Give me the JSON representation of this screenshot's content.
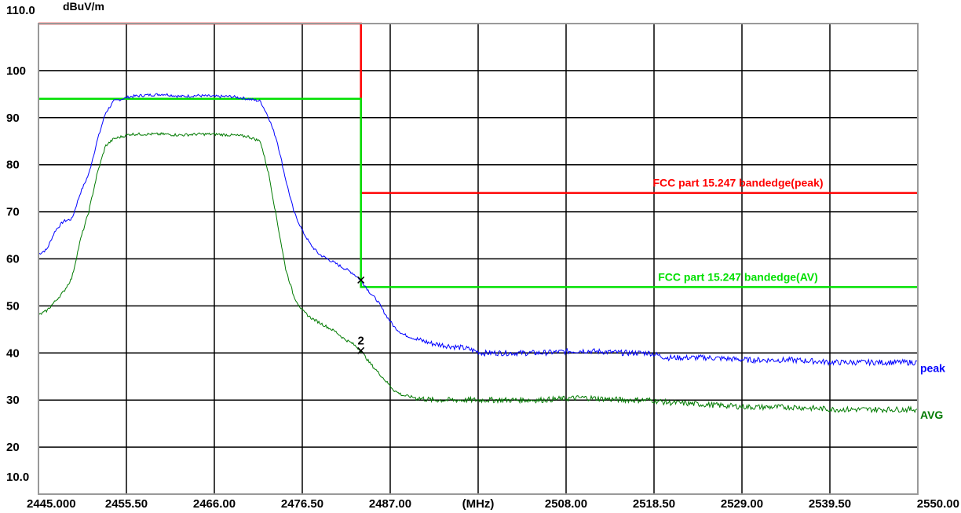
{
  "chart_data": {
    "type": "line",
    "title": "",
    "ylabel": "dBuV/m",
    "xlabel": "(MHz)",
    "xlim": [
      2445.0,
      2550.0
    ],
    "ylim": [
      10.0,
      110.0
    ],
    "grid": true,
    "y_ticks": [
      "110.0",
      "100",
      "90",
      "80",
      "70",
      "60",
      "50",
      "40",
      "30",
      "20",
      "10.0"
    ],
    "y_tick_values": [
      110,
      100,
      90,
      80,
      70,
      60,
      50,
      40,
      30,
      20,
      10
    ],
    "x_ticks": [
      "2445.000",
      "2455.50",
      "2466.00",
      "2476.50",
      "2487.00",
      "(MHz)",
      "2508.00",
      "2518.50",
      "2529.00",
      "2539.50",
      "2550.00"
    ],
    "x_tick_values": [
      2445.0,
      2455.5,
      2466.0,
      2476.5,
      2487.0,
      2497.5,
      2508.0,
      2518.5,
      2529.0,
      2539.5,
      2550.0
    ],
    "limits": [
      {
        "name": "FCC part 15.247 bandedge(peak)",
        "color": "#ff0000",
        "x": [
          2445.0,
          2483.5,
          2483.5,
          2550.0
        ],
        "y": [
          110.0,
          110.0,
          74.0,
          74.0
        ]
      },
      {
        "name": "FCC part 15.247 bandedge(AV)",
        "color": "#00e000",
        "x": [
          2445.0,
          2483.5,
          2483.5,
          2550.0
        ],
        "y": [
          94.0,
          94.0,
          54.0,
          54.0
        ]
      }
    ],
    "series": [
      {
        "name": "peak",
        "color": "#0000ff",
        "x": [
          2445.0,
          2446.0,
          2447.0,
          2448.0,
          2449.0,
          2450.0,
          2451.0,
          2452.0,
          2453.0,
          2454.0,
          2455.0,
          2456.0,
          2458.0,
          2460.0,
          2462.0,
          2464.0,
          2466.0,
          2468.0,
          2470.0,
          2471.5,
          2472.5,
          2473.5,
          2474.5,
          2475.5,
          2476.5,
          2477.5,
          2478.5,
          2479.5,
          2480.5,
          2481.5,
          2482.5,
          2483.5,
          2484.5,
          2485.5,
          2486.5,
          2487.5,
          2488.5,
          2490.0,
          2492.0,
          2494.0,
          2496.0,
          2498.0,
          2500.0,
          2505.0,
          2510.0,
          2515.0,
          2518.0,
          2520.0,
          2525.0,
          2530.0,
          2535.0,
          2540.0,
          2545.0,
          2550.0
        ],
        "y": [
          61.0,
          62.0,
          66.0,
          68.0,
          68.5,
          74.0,
          78.0,
          85.0,
          91.0,
          93.5,
          94.0,
          94.5,
          94.8,
          95.0,
          94.5,
          94.7,
          94.5,
          94.5,
          94.0,
          93.5,
          90.0,
          85.0,
          77.0,
          70.0,
          66.0,
          63.0,
          61.0,
          60.0,
          59.0,
          58.0,
          57.0,
          55.5,
          53.0,
          51.0,
          48.0,
          45.5,
          44.0,
          43.0,
          42.0,
          41.5,
          41.0,
          40.0,
          40.0,
          40.0,
          40.5,
          40.0,
          40.0,
          39.0,
          39.0,
          38.5,
          38.5,
          38.0,
          38.0,
          38.0
        ]
      },
      {
        "name": "AVG",
        "color": "#007a00",
        "x": [
          2445.0,
          2446.0,
          2447.0,
          2448.0,
          2449.0,
          2450.0,
          2451.0,
          2452.0,
          2453.0,
          2454.0,
          2455.0,
          2456.0,
          2458.0,
          2460.0,
          2462.0,
          2464.0,
          2466.0,
          2468.0,
          2470.0,
          2471.5,
          2472.5,
          2473.5,
          2474.5,
          2475.5,
          2476.5,
          2477.5,
          2478.5,
          2479.5,
          2480.5,
          2481.5,
          2482.5,
          2483.5,
          2484.5,
          2485.5,
          2486.5,
          2487.5,
          2488.5,
          2490.0,
          2492.0,
          2494.0,
          2496.0,
          2498.0,
          2500.0,
          2505.0,
          2510.0,
          2515.0,
          2518.0,
          2520.0,
          2525.0,
          2530.0,
          2535.0,
          2540.0,
          2545.0,
          2550.0
        ],
        "y": [
          48.0,
          49.0,
          51.0,
          53.0,
          56.0,
          64.0,
          70.0,
          78.0,
          84.0,
          85.5,
          86.0,
          86.5,
          86.5,
          86.5,
          86.3,
          86.5,
          86.5,
          86.3,
          86.0,
          85.0,
          78.0,
          68.0,
          58.0,
          52.0,
          49.0,
          47.5,
          46.5,
          45.5,
          44.5,
          43.0,
          42.0,
          40.5,
          38.0,
          36.0,
          34.0,
          32.0,
          31.0,
          30.5,
          30.0,
          30.0,
          30.0,
          30.0,
          30.0,
          30.0,
          30.5,
          30.0,
          30.0,
          29.5,
          29.0,
          28.5,
          28.5,
          28.0,
          28.0,
          28.0
        ]
      }
    ],
    "markers": [
      {
        "label": "",
        "series": "peak",
        "x": 2483.5,
        "y": 55.5
      },
      {
        "label": "2",
        "series": "AVG",
        "x": 2483.5,
        "y": 40.5
      }
    ]
  }
}
